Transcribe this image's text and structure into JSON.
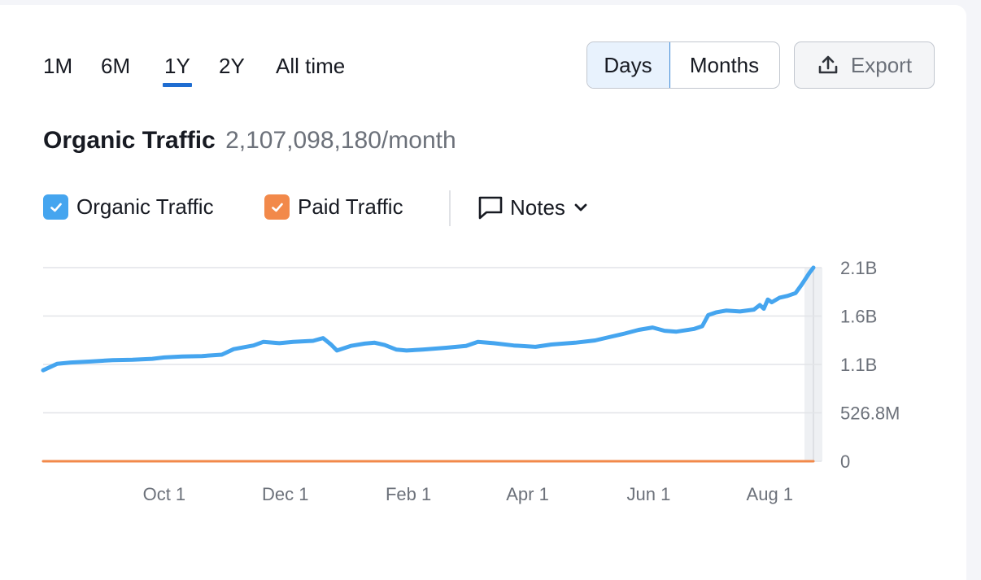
{
  "toolbar": {
    "ranges": [
      {
        "label": "1M",
        "active": false
      },
      {
        "label": "6M",
        "active": false
      },
      {
        "label": "1Y",
        "active": true
      },
      {
        "label": "2Y",
        "active": false
      },
      {
        "label": "All time",
        "active": false
      }
    ],
    "granularity": {
      "days_label": "Days",
      "months_label": "Months",
      "selected": "Days"
    },
    "export_label": "Export"
  },
  "headline": {
    "label": "Organic Traffic",
    "value": "2,107,098,180/month"
  },
  "legend": {
    "organic": {
      "label": "Organic Traffic",
      "checked": true,
      "color": "#45a5ef"
    },
    "paid": {
      "label": "Paid Traffic",
      "checked": true,
      "color": "#f2894a"
    },
    "notes_label": "Notes"
  },
  "colors": {
    "accent": "#1f6dd1",
    "organic": "#45a5ef",
    "paid": "#f2894a",
    "grid": "#e2e4e8"
  },
  "chart_data": {
    "type": "line",
    "title": "",
    "xlabel": "",
    "ylabel": "",
    "ylim": [
      0,
      2107000000
    ],
    "y_ticks": [
      {
        "value": 2107000000,
        "label": "2.1B"
      },
      {
        "value": 1580000000,
        "label": "1.6B"
      },
      {
        "value": 1053000000,
        "label": "1.1B"
      },
      {
        "value": 526800000,
        "label": "526.8M"
      },
      {
        "value": 0,
        "label": "0"
      }
    ],
    "x_ticks": [
      {
        "date": "2023-10-01",
        "label": "Oct 1"
      },
      {
        "date": "2023-12-01",
        "label": "Dec 1"
      },
      {
        "date": "2024-02-01",
        "label": "Feb 1"
      },
      {
        "date": "2024-04-01",
        "label": "Apr 1"
      },
      {
        "date": "2024-06-01",
        "label": "Jun 1"
      },
      {
        "date": "2024-08-01",
        "label": "Aug 1"
      }
    ],
    "grid": true,
    "series": [
      {
        "name": "Organic Traffic",
        "color": "#45a5ef",
        "points": [
          [
            "2023-08-01",
            990000000
          ],
          [
            "2023-08-08",
            1060000000
          ],
          [
            "2023-08-15",
            1075000000
          ],
          [
            "2023-08-25",
            1085000000
          ],
          [
            "2023-09-05",
            1100000000
          ],
          [
            "2023-09-15",
            1105000000
          ],
          [
            "2023-09-25",
            1115000000
          ],
          [
            "2023-10-01",
            1130000000
          ],
          [
            "2023-10-10",
            1140000000
          ],
          [
            "2023-10-20",
            1145000000
          ],
          [
            "2023-10-30",
            1160000000
          ],
          [
            "2023-11-05",
            1220000000
          ],
          [
            "2023-11-15",
            1260000000
          ],
          [
            "2023-11-20",
            1300000000
          ],
          [
            "2023-11-28",
            1285000000
          ],
          [
            "2023-12-05",
            1300000000
          ],
          [
            "2023-12-15",
            1310000000
          ],
          [
            "2023-12-20",
            1340000000
          ],
          [
            "2023-12-24",
            1270000000
          ],
          [
            "2023-12-27",
            1205000000
          ],
          [
            "2024-01-03",
            1255000000
          ],
          [
            "2024-01-10",
            1280000000
          ],
          [
            "2024-01-15",
            1290000000
          ],
          [
            "2024-01-20",
            1265000000
          ],
          [
            "2024-01-26",
            1215000000
          ],
          [
            "2024-01-31",
            1205000000
          ],
          [
            "2024-02-08",
            1215000000
          ],
          [
            "2024-02-20",
            1235000000
          ],
          [
            "2024-03-01",
            1255000000
          ],
          [
            "2024-03-07",
            1300000000
          ],
          [
            "2024-03-15",
            1285000000
          ],
          [
            "2024-03-25",
            1260000000
          ],
          [
            "2024-04-05",
            1245000000
          ],
          [
            "2024-04-13",
            1270000000
          ],
          [
            "2024-04-25",
            1290000000
          ],
          [
            "2024-05-05",
            1315000000
          ],
          [
            "2024-05-12",
            1350000000
          ],
          [
            "2024-05-20",
            1390000000
          ],
          [
            "2024-05-27",
            1430000000
          ],
          [
            "2024-06-03",
            1455000000
          ],
          [
            "2024-06-09",
            1420000000
          ],
          [
            "2024-06-15",
            1410000000
          ],
          [
            "2024-06-24",
            1440000000
          ],
          [
            "2024-06-28",
            1470000000
          ],
          [
            "2024-07-01",
            1590000000
          ],
          [
            "2024-07-05",
            1620000000
          ],
          [
            "2024-07-10",
            1640000000
          ],
          [
            "2024-07-17",
            1630000000
          ],
          [
            "2024-07-24",
            1650000000
          ],
          [
            "2024-07-27",
            1700000000
          ],
          [
            "2024-07-29",
            1660000000
          ],
          [
            "2024-07-31",
            1760000000
          ],
          [
            "2024-08-02",
            1730000000
          ],
          [
            "2024-08-06",
            1780000000
          ],
          [
            "2024-08-10",
            1800000000
          ],
          [
            "2024-08-14",
            1830000000
          ],
          [
            "2024-08-17",
            1920000000
          ],
          [
            "2024-08-21",
            2050000000
          ],
          [
            "2024-08-23",
            2107000000
          ]
        ]
      },
      {
        "name": "Paid Traffic",
        "color": "#f2894a",
        "points": [
          [
            "2023-08-01",
            0
          ],
          [
            "2024-08-23",
            0
          ]
        ]
      }
    ]
  }
}
